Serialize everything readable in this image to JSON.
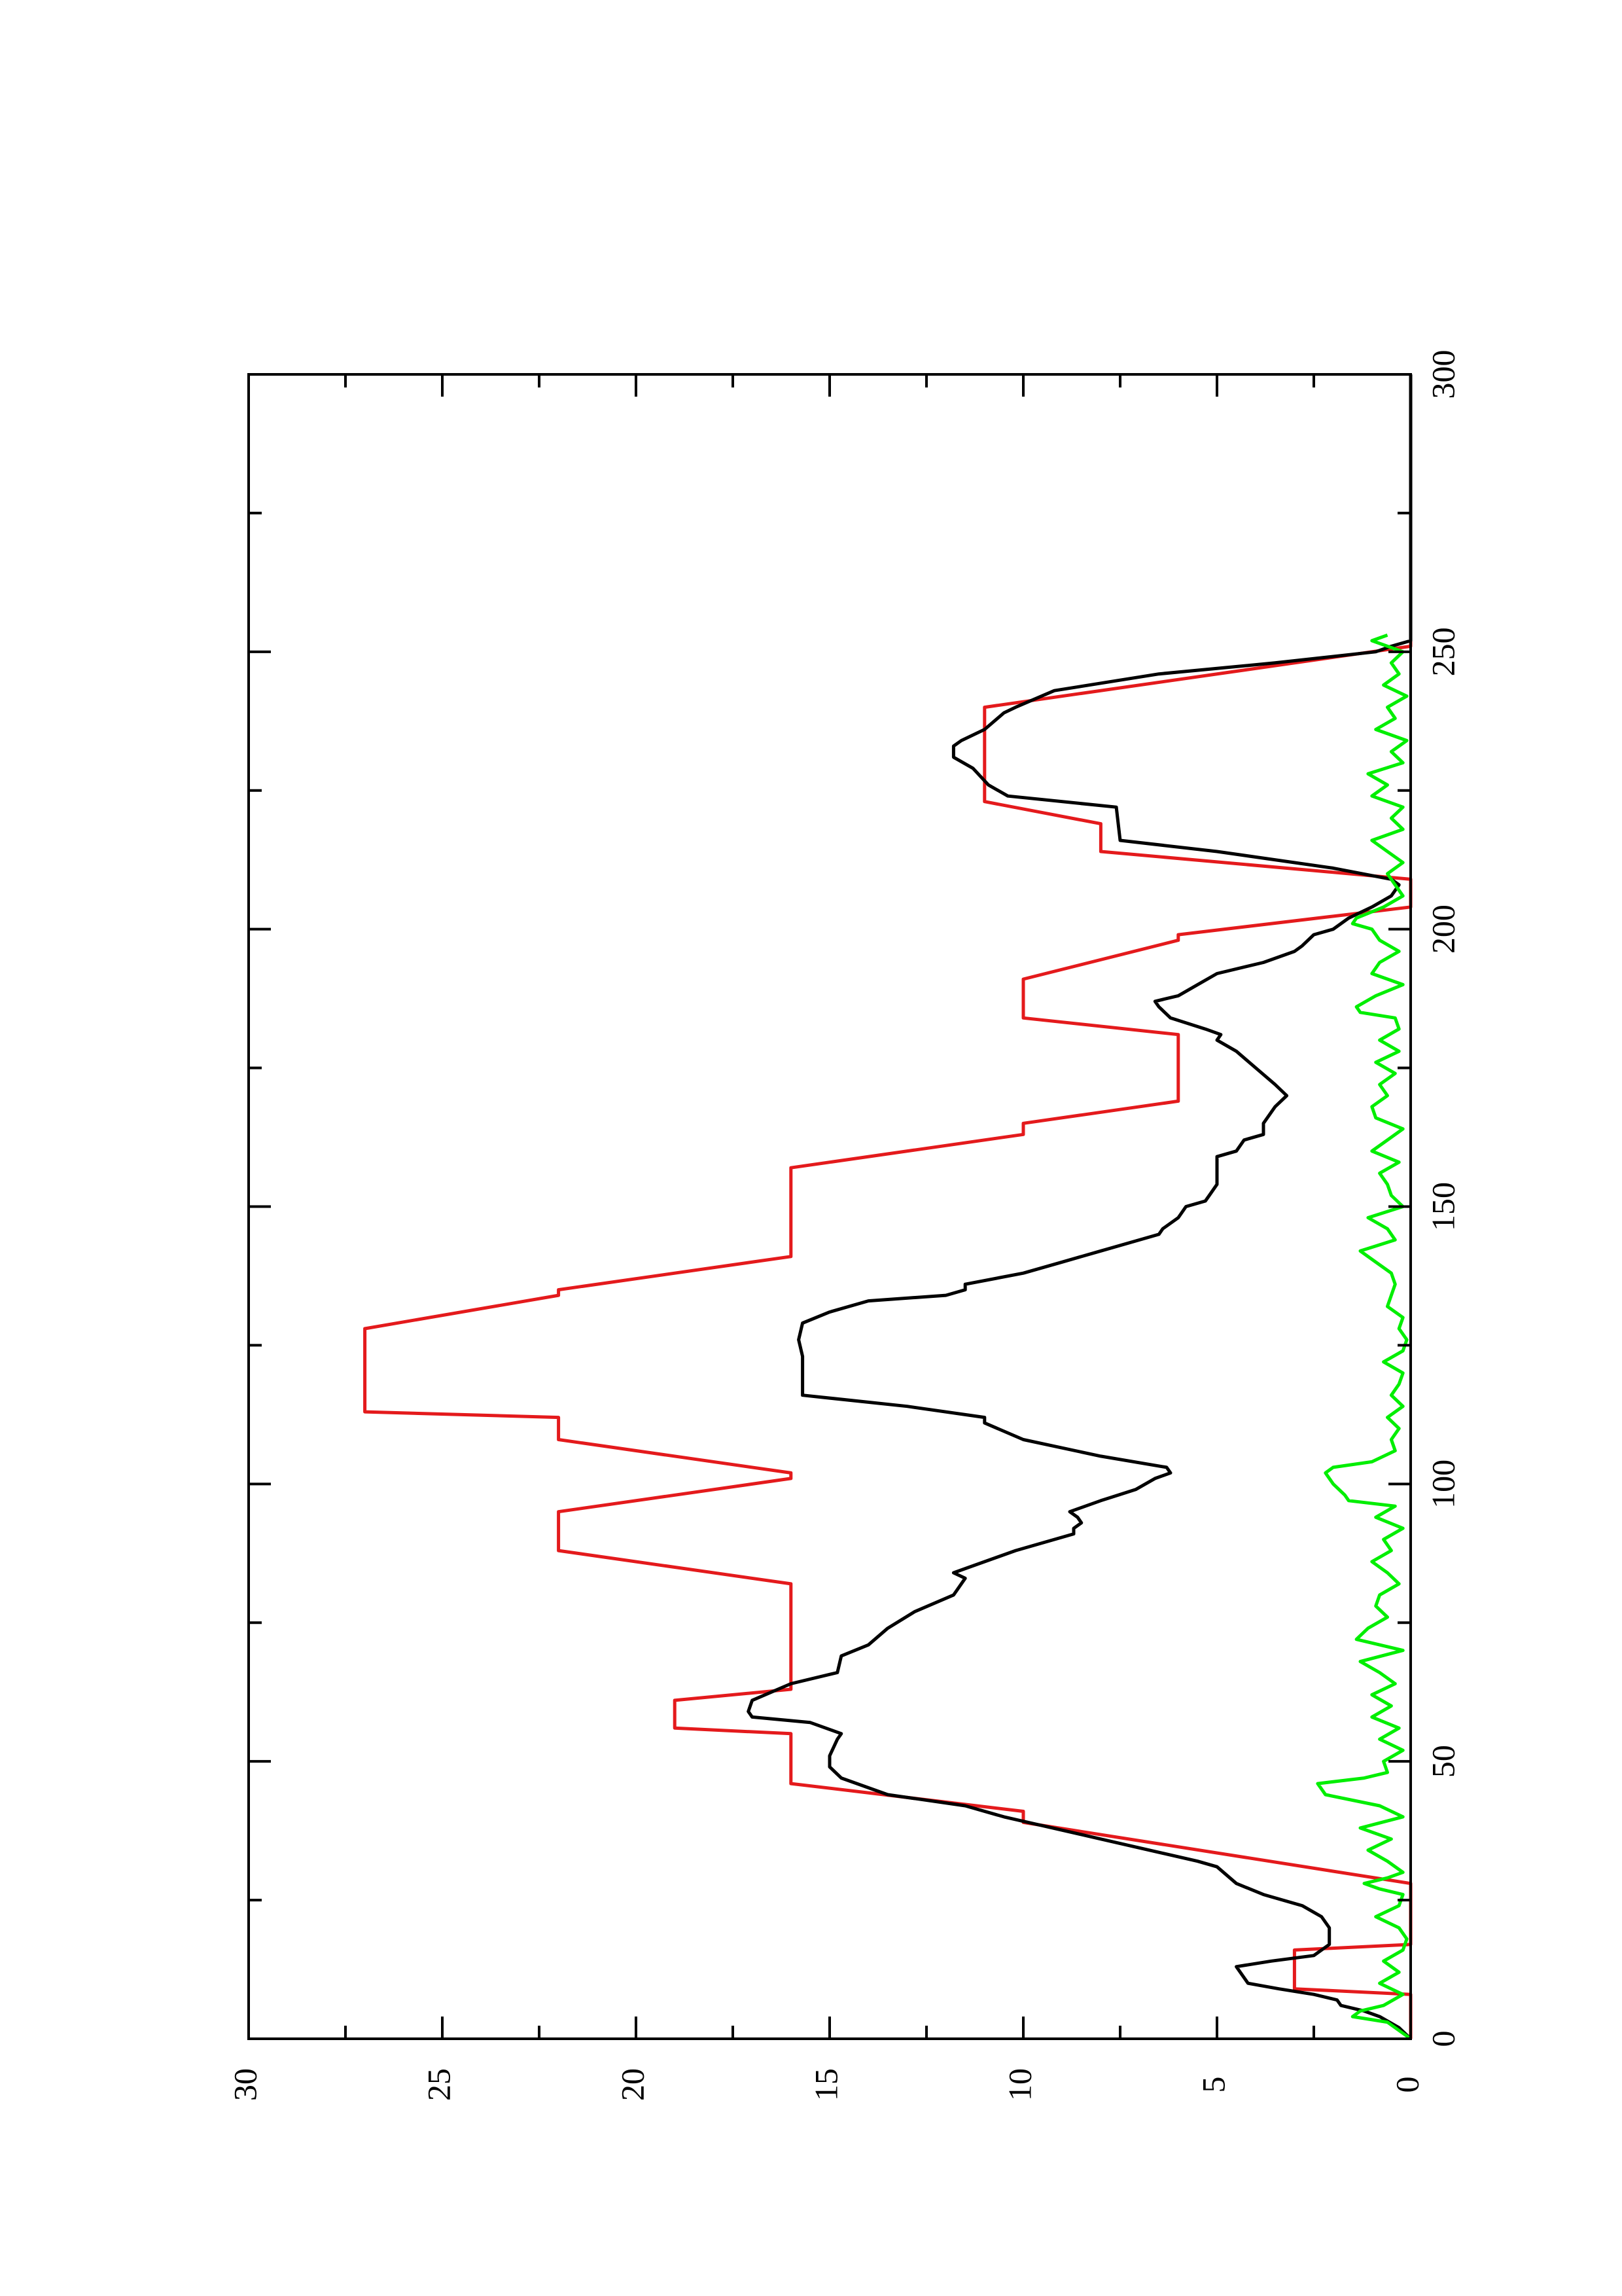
{
  "chart_data": {
    "type": "line",
    "orientation": "rotated-90-ccw",
    "title": "",
    "xlabel": "",
    "ylabel": "",
    "xlim": [
      0,
      300
    ],
    "ylim": [
      0,
      30
    ],
    "x_ticks": [
      0,
      50,
      100,
      150,
      200,
      250,
      300
    ],
    "y_ticks": [
      0,
      5,
      10,
      15,
      20,
      25,
      30
    ],
    "x_tick_labels": [
      "0",
      "50",
      "100",
      "150",
      "200",
      "250",
      "300"
    ],
    "y_tick_labels": [
      "0",
      "5",
      "10",
      "15",
      "20",
      "25",
      "30"
    ],
    "legend": "none",
    "grid": false,
    "series": [
      {
        "color": "#e41a1c",
        "points": [
          [
            0,
            0
          ],
          [
            8,
            0
          ],
          [
            9,
            3
          ],
          [
            16,
            3
          ],
          [
            17,
            0
          ],
          [
            28,
            0
          ],
          [
            39,
            10
          ],
          [
            41,
            10
          ],
          [
            46,
            16
          ],
          [
            55,
            16
          ],
          [
            56,
            19
          ],
          [
            61,
            19
          ],
          [
            63,
            16
          ],
          [
            82,
            16
          ],
          [
            88,
            22
          ],
          [
            95,
            22
          ],
          [
            101,
            16
          ],
          [
            102,
            16
          ],
          [
            108,
            22
          ],
          [
            112,
            22
          ],
          [
            113,
            27
          ],
          [
            127,
            27
          ],
          [
            128,
            27
          ],
          [
            134,
            22
          ],
          [
            135,
            22
          ],
          [
            141,
            16
          ],
          [
            157,
            16
          ],
          [
            163,
            10
          ],
          [
            165,
            10
          ],
          [
            169,
            6
          ],
          [
            181,
            6
          ],
          [
            184,
            10
          ],
          [
            191,
            10
          ],
          [
            198,
            6
          ],
          [
            199,
            6
          ],
          [
            204,
            0
          ],
          [
            209,
            0
          ],
          [
            214,
            8
          ],
          [
            219,
            8
          ],
          [
            223,
            11
          ],
          [
            240,
            11
          ],
          [
            251,
            0
          ],
          [
            300,
            0
          ]
        ]
      },
      {
        "color": "#000000",
        "points": [
          [
            0,
            0
          ],
          [
            2,
            0.3
          ],
          [
            4,
            0.8
          ],
          [
            5,
            1.2
          ],
          [
            6,
            1.8
          ],
          [
            7,
            1.9
          ],
          [
            8,
            2.5
          ],
          [
            9,
            3.4
          ],
          [
            10,
            4.2
          ],
          [
            13,
            4.5
          ],
          [
            14,
            3.6
          ],
          [
            15,
            2.5
          ],
          [
            16,
            2.3
          ],
          [
            17,
            2.1
          ],
          [
            20,
            2.1
          ],
          [
            22,
            2.3
          ],
          [
            24,
            2.8
          ],
          [
            26,
            3.8
          ],
          [
            28,
            4.5
          ],
          [
            31,
            5.0
          ],
          [
            32,
            5.5
          ],
          [
            36,
            8.0
          ],
          [
            40,
            10.5
          ],
          [
            42,
            11.5
          ],
          [
            44,
            13.5
          ],
          [
            47,
            14.7
          ],
          [
            49,
            15.0
          ],
          [
            51,
            15.0
          ],
          [
            54,
            14.8
          ],
          [
            55,
            14.7
          ],
          [
            57,
            15.5
          ],
          [
            58,
            17.0
          ],
          [
            59,
            17.1
          ],
          [
            61,
            17.0
          ],
          [
            64,
            16.0
          ],
          [
            66,
            14.8
          ],
          [
            69,
            14.7
          ],
          [
            71,
            14.0
          ],
          [
            74,
            13.5
          ],
          [
            77,
            12.8
          ],
          [
            80,
            11.8
          ],
          [
            83,
            11.5
          ],
          [
            84,
            11.8
          ],
          [
            85,
            11.4
          ],
          [
            88,
            10.2
          ],
          [
            91,
            8.7
          ],
          [
            92,
            8.7
          ],
          [
            93,
            8.5
          ],
          [
            94,
            8.6
          ],
          [
            95,
            8.8
          ],
          [
            97,
            8.0
          ],
          [
            99,
            7.1
          ],
          [
            101,
            6.6
          ],
          [
            102,
            6.2
          ],
          [
            103,
            6.3
          ],
          [
            105,
            8.0
          ],
          [
            108,
            10.0
          ],
          [
            111,
            11.0
          ],
          [
            112,
            11.0
          ],
          [
            114,
            13.0
          ],
          [
            116,
            15.7
          ],
          [
            123,
            15.7
          ],
          [
            126,
            15.8
          ],
          [
            129,
            15.7
          ],
          [
            131,
            15.0
          ],
          [
            133,
            14.0
          ],
          [
            134,
            12.0
          ],
          [
            135,
            11.5
          ],
          [
            136,
            11.5
          ],
          [
            138,
            10.0
          ],
          [
            140,
            9.0
          ],
          [
            142,
            8.0
          ],
          [
            144,
            7.0
          ],
          [
            145,
            6.5
          ],
          [
            146,
            6.4
          ],
          [
            148,
            6.0
          ],
          [
            150,
            5.8
          ],
          [
            151,
            5.3
          ],
          [
            152,
            5.2
          ],
          [
            154,
            5.0
          ],
          [
            159,
            5.0
          ],
          [
            160,
            4.5
          ],
          [
            162,
            4.3
          ],
          [
            163,
            3.8
          ],
          [
            165,
            3.8
          ],
          [
            168,
            3.5
          ],
          [
            170,
            3.2
          ],
          [
            172,
            3.5
          ],
          [
            175,
            4.0
          ],
          [
            178,
            4.5
          ],
          [
            180,
            5.0
          ],
          [
            181,
            4.9
          ],
          [
            182,
            5.3
          ],
          [
            184,
            6.2
          ],
          [
            186,
            6.5
          ],
          [
            187,
            6.6
          ],
          [
            188,
            6.0
          ],
          [
            190,
            5.5
          ],
          [
            192,
            5.0
          ],
          [
            194,
            3.8
          ],
          [
            196,
            3.0
          ],
          [
            197,
            2.8
          ],
          [
            199,
            2.5
          ],
          [
            200,
            2.0
          ],
          [
            202,
            1.6
          ],
          [
            204,
            1.0
          ],
          [
            206,
            0.5
          ],
          [
            208,
            0.3
          ],
          [
            209,
            0.5
          ],
          [
            211,
            2.0
          ],
          [
            214,
            5.0
          ],
          [
            216,
            7.5
          ],
          [
            222,
            7.6
          ],
          [
            224,
            10.4
          ],
          [
            226,
            10.9
          ],
          [
            229,
            11.3
          ],
          [
            231,
            11.8
          ],
          [
            233,
            11.8
          ],
          [
            234,
            11.6
          ],
          [
            236,
            11.0
          ],
          [
            239,
            10.5
          ],
          [
            240,
            10.2
          ],
          [
            243,
            9.2
          ],
          [
            246,
            6.5
          ],
          [
            248,
            3.5
          ],
          [
            250,
            0.9
          ],
          [
            251,
            0.5
          ],
          [
            252,
            0
          ],
          [
            300,
            0
          ]
        ]
      },
      {
        "color": "#00ee00",
        "points": [
          [
            0,
            0
          ],
          [
            3,
            0.6
          ],
          [
            4,
            1.5
          ],
          [
            5,
            1.3
          ],
          [
            6,
            0.7
          ],
          [
            8,
            0.2
          ],
          [
            10,
            0.8
          ],
          [
            12,
            0.3
          ],
          [
            14,
            0.7
          ],
          [
            16,
            0.2
          ],
          [
            18,
            0.1
          ],
          [
            20,
            0.3
          ],
          [
            22,
            0.9
          ],
          [
            24,
            0.3
          ],
          [
            26,
            0.2
          ],
          [
            27,
            0.8
          ],
          [
            28,
            1.2
          ],
          [
            29,
            0.6
          ],
          [
            30,
            0.2
          ],
          [
            32,
            0.6
          ],
          [
            34,
            1.1
          ],
          [
            36,
            0.5
          ],
          [
            38,
            1.3
          ],
          [
            40,
            0.2
          ],
          [
            42,
            0.8
          ],
          [
            44,
            2.2
          ],
          [
            46,
            2.4
          ],
          [
            47,
            1.2
          ],
          [
            48,
            0.6
          ],
          [
            50,
            0.7
          ],
          [
            52,
            0.2
          ],
          [
            54,
            0.8
          ],
          [
            56,
            0.3
          ],
          [
            58,
            1.0
          ],
          [
            60,
            0.5
          ],
          [
            62,
            1.0
          ],
          [
            64,
            0.4
          ],
          [
            66,
            0.8
          ],
          [
            68,
            1.3
          ],
          [
            70,
            0.2
          ],
          [
            72,
            1.4
          ],
          [
            74,
            1.1
          ],
          [
            76,
            0.6
          ],
          [
            78,
            0.9
          ],
          [
            80,
            0.8
          ],
          [
            82,
            0.3
          ],
          [
            84,
            0.6
          ],
          [
            86,
            1.0
          ],
          [
            88,
            0.5
          ],
          [
            90,
            0.7
          ],
          [
            92,
            0.2
          ],
          [
            94,
            0.9
          ],
          [
            96,
            0.4
          ],
          [
            97,
            1.6
          ],
          [
            98,
            1.7
          ],
          [
            100,
            2.0
          ],
          [
            102,
            2.2
          ],
          [
            103,
            2.0
          ],
          [
            104,
            1.0
          ],
          [
            106,
            0.4
          ],
          [
            108,
            0.5
          ],
          [
            110,
            0.3
          ],
          [
            112,
            0.6
          ],
          [
            114,
            0.2
          ],
          [
            116,
            0.5
          ],
          [
            118,
            0.3
          ],
          [
            120,
            0.2
          ],
          [
            122,
            0.7
          ],
          [
            124,
            0.2
          ],
          [
            126,
            0.1
          ],
          [
            128,
            0.3
          ],
          [
            130,
            0.2
          ],
          [
            132,
            0.6
          ],
          [
            134,
            0.5
          ],
          [
            136,
            0.4
          ],
          [
            138,
            0.5
          ],
          [
            140,
            0.9
          ],
          [
            142,
            1.3
          ],
          [
            144,
            0.4
          ],
          [
            146,
            0.6
          ],
          [
            148,
            1.1
          ],
          [
            150,
            0.2
          ],
          [
            152,
            0.5
          ],
          [
            154,
            0.6
          ],
          [
            156,
            0.8
          ],
          [
            158,
            0.3
          ],
          [
            160,
            1.0
          ],
          [
            162,
            0.6
          ],
          [
            164,
            0.2
          ],
          [
            166,
            0.9
          ],
          [
            168,
            1.0
          ],
          [
            170,
            0.6
          ],
          [
            172,
            0.8
          ],
          [
            174,
            0.4
          ],
          [
            176,
            0.9
          ],
          [
            178,
            0.3
          ],
          [
            180,
            0.8
          ],
          [
            182,
            0.3
          ],
          [
            184,
            0.4
          ],
          [
            185,
            1.3
          ],
          [
            186,
            1.4
          ],
          [
            188,
            0.9
          ],
          [
            190,
            0.2
          ],
          [
            192,
            1.0
          ],
          [
            194,
            0.8
          ],
          [
            196,
            0.3
          ],
          [
            198,
            0.8
          ],
          [
            200,
            1.0
          ],
          [
            201,
            1.5
          ],
          [
            202,
            1.4
          ],
          [
            204,
            0.7
          ],
          [
            206,
            0.2
          ],
          [
            208,
            0.4
          ],
          [
            210,
            0.6
          ],
          [
            212,
            0.2
          ],
          [
            214,
            0.6
          ],
          [
            216,
            1.0
          ],
          [
            218,
            0.2
          ],
          [
            220,
            0.5
          ],
          [
            222,
            0.2
          ],
          [
            224,
            1.0
          ],
          [
            226,
            0.6
          ],
          [
            228,
            1.1
          ],
          [
            230,
            0.2
          ],
          [
            232,
            0.5
          ],
          [
            234,
            0.1
          ],
          [
            236,
            0.9
          ],
          [
            238,
            0.4
          ],
          [
            240,
            0.6
          ],
          [
            242,
            0.1
          ],
          [
            244,
            0.7
          ],
          [
            246,
            0.3
          ],
          [
            248,
            0.5
          ],
          [
            250,
            0.2
          ],
          [
            252,
            1.0
          ],
          [
            253,
            0.6
          ]
        ]
      }
    ]
  }
}
